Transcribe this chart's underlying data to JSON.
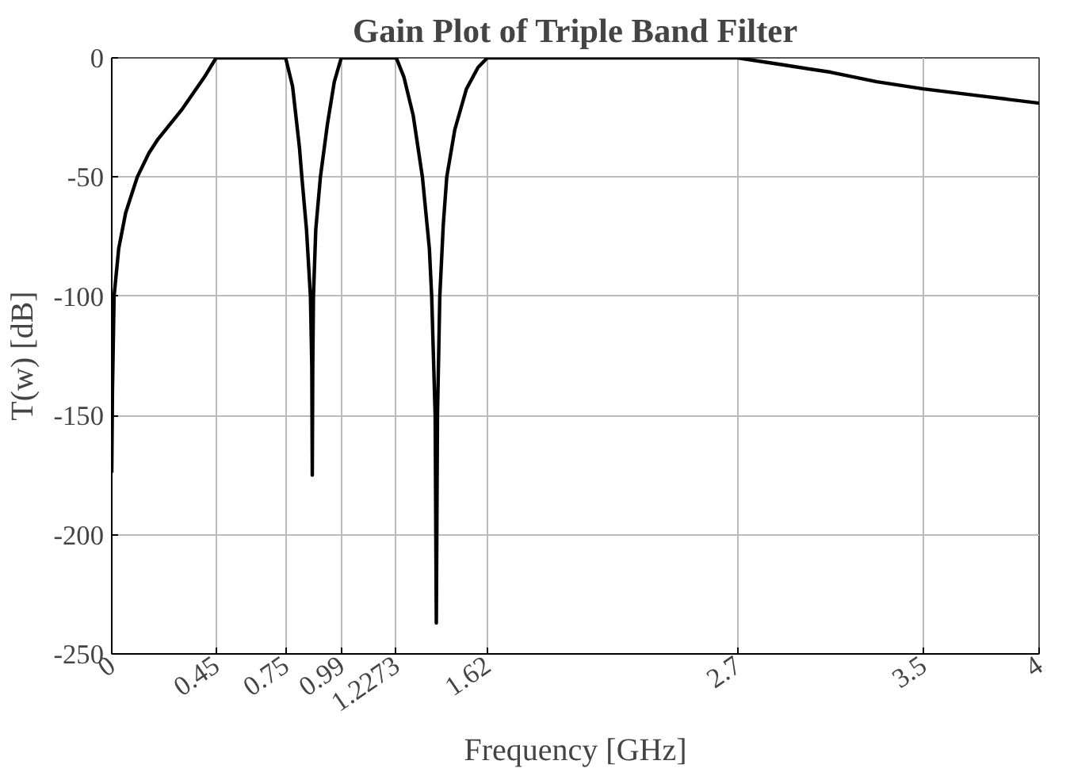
{
  "chart_data": {
    "type": "line",
    "title": "Gain Plot of Triple Band Filter",
    "xlabel": "Frequency [GHz]",
    "ylabel": "T(w) [dB]",
    "xlim": [
      0,
      4
    ],
    "ylim": [
      -250,
      0
    ],
    "xticks": [
      0,
      0.45,
      0.75,
      0.99,
      1.2273,
      1.62,
      2.7,
      3.5,
      4
    ],
    "yticks": [
      -250,
      -200,
      -150,
      -100,
      -50,
      0
    ],
    "grid": true,
    "marker": "none",
    "line_style": "solid",
    "series": [
      {
        "color": "#000000",
        "x": [
          0,
          0.003,
          0.01,
          0.03,
          0.06,
          0.11,
          0.16,
          0.2,
          0.3,
          0.4,
          0.45,
          0.75,
          0.78,
          0.81,
          0.82,
          0.84,
          0.857,
          0.863,
          0.865,
          0.867,
          0.87,
          0.88,
          0.9,
          0.93,
          0.96,
          0.99,
          1.2273,
          1.26,
          1.3,
          1.34,
          1.37,
          1.38,
          1.395,
          1.4,
          1.405,
          1.415,
          1.43,
          1.445,
          1.48,
          1.53,
          1.58,
          1.62,
          2.7,
          2.9,
          3.1,
          3.3,
          3.5,
          3.75,
          4
        ],
        "values": [
          -174,
          -140,
          -100,
          -80,
          -65,
          -50,
          -40,
          -34,
          -22,
          -8,
          0,
          0,
          -12,
          -38,
          -50,
          -72,
          -100,
          -130,
          -175,
          -130,
          -100,
          -72,
          -50,
          -28,
          -10,
          0,
          0,
          -8,
          -24,
          -50,
          -80,
          -100,
          -150,
          -237,
          -150,
          -100,
          -70,
          -50,
          -30,
          -13,
          -4,
          0,
          0,
          -3,
          -6,
          -10,
          -13,
          -16,
          -19
        ]
      }
    ]
  }
}
